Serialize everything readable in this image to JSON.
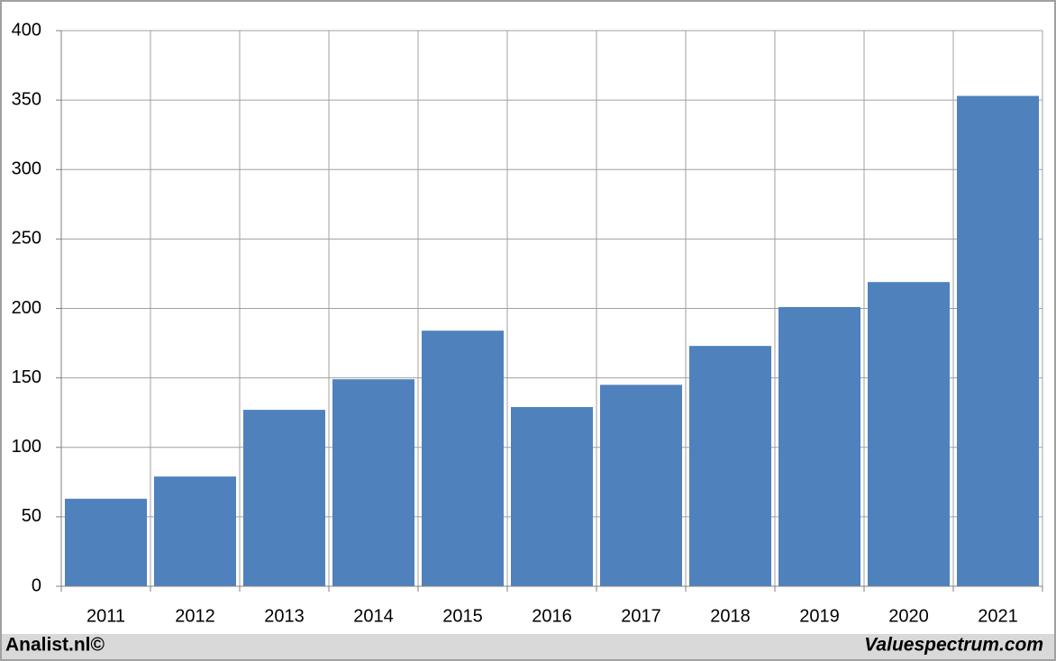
{
  "chart_data": {
    "type": "bar",
    "categories": [
      "2011",
      "2012",
      "2013",
      "2014",
      "2015",
      "2016",
      "2017",
      "2018",
      "2019",
      "2020",
      "2021"
    ],
    "values": [
      63,
      79,
      127,
      149,
      184,
      129,
      145,
      173,
      201,
      219,
      353
    ],
    "color": "#4f81bd",
    "ylim": [
      0,
      400
    ],
    "yticks": [
      0,
      50,
      100,
      150,
      200,
      250,
      300,
      350,
      400
    ],
    "grid": true
  },
  "footer": {
    "left": "Analist.nl©",
    "right": "Valuespectrum.com"
  }
}
